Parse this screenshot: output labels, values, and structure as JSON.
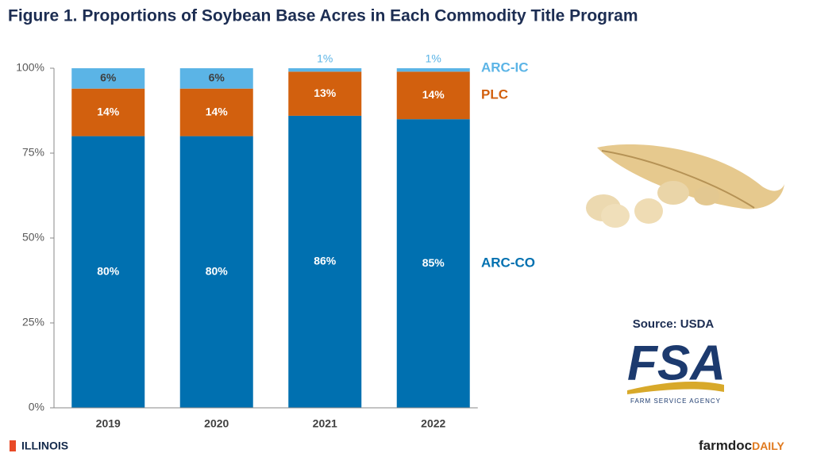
{
  "chart_data": {
    "type": "stacked_bar",
    "title": "Figure 1. Proportions of Soybean Base Acres in Each Commodity Title Program",
    "categories": [
      "2019",
      "2020",
      "2021",
      "2022"
    ],
    "series": [
      {
        "name": "ARC-CO",
        "color": "#0070b0",
        "values": [
          80,
          80,
          86,
          85
        ],
        "value_labels": [
          "80%",
          "80%",
          "86%",
          "85%"
        ]
      },
      {
        "name": "PLC",
        "color": "#d2600e",
        "values": [
          14,
          14,
          13,
          14
        ],
        "value_labels": [
          "14%",
          "14%",
          "13%",
          "14%"
        ]
      },
      {
        "name": "ARC-IC",
        "color": "#5bb4e6",
        "values": [
          6,
          6,
          1,
          1
        ],
        "value_labels": [
          "6%",
          "6%",
          "1%",
          "1%"
        ]
      }
    ],
    "ylim": [
      0,
      100
    ],
    "yticks": [
      {
        "value": 0,
        "label": "0%"
      },
      {
        "value": 25,
        "label": "25%"
      },
      {
        "value": 50,
        "label": "50%"
      },
      {
        "value": 75,
        "label": "75%"
      },
      {
        "value": 100,
        "label": "100%"
      }
    ],
    "grid": false,
    "legend": "right"
  },
  "source": "Source: USDA",
  "logo": {
    "acronym": "FSA",
    "agency": "FARM SERVICE AGENCY"
  },
  "footer": {
    "left": "ILLINOIS",
    "right_main": "farmdoc",
    "right_accent": "DAILY"
  }
}
